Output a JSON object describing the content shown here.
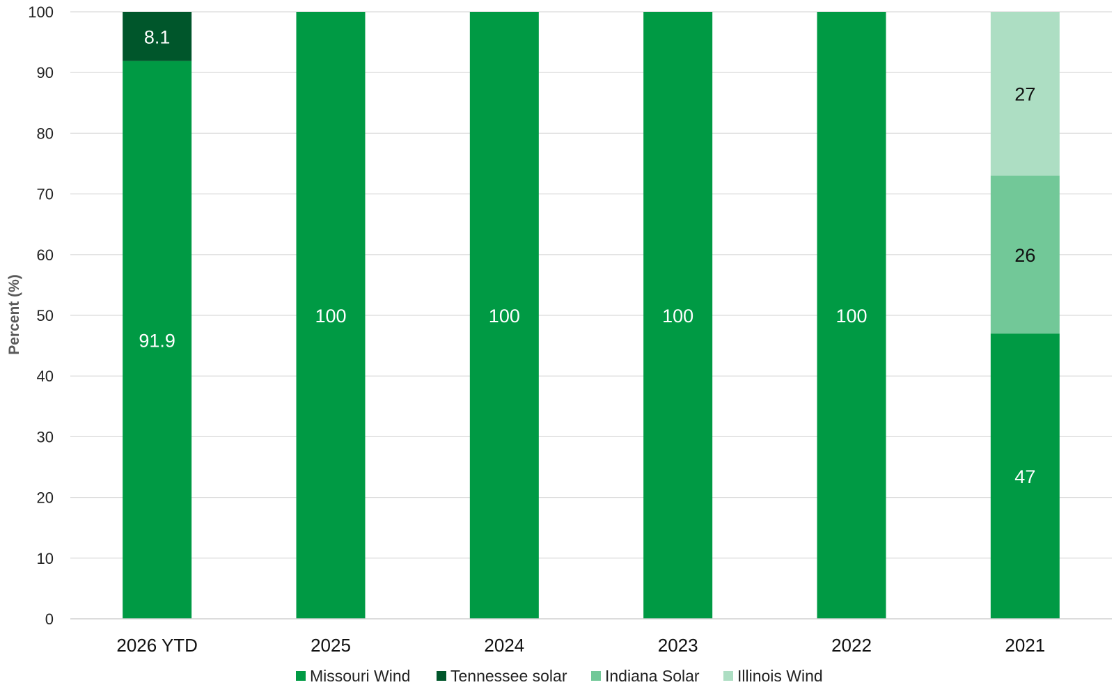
{
  "chart_data": {
    "type": "bar",
    "stacked": true,
    "categories": [
      "2026 YTD",
      "2025",
      "2024",
      "2023",
      "2022",
      "2021"
    ],
    "series": [
      {
        "name": "Missouri Wind",
        "color": "#009a44",
        "label_color": "#ffffff",
        "values": [
          91.9,
          100,
          100,
          100,
          100,
          47
        ],
        "labels": [
          "91.9",
          "100",
          "100",
          "100",
          "100",
          "47"
        ]
      },
      {
        "name": "Tennessee solar",
        "color": "#00562b",
        "label_color": "#ffffff",
        "values": [
          8.1,
          0,
          0,
          0,
          0,
          0
        ],
        "labels": [
          "8.1",
          "",
          "",
          "",
          "",
          ""
        ]
      },
      {
        "name": "Indiana Solar",
        "color": "#72c898",
        "label_color": "#111111",
        "values": [
          0,
          0,
          0,
          0,
          0,
          26
        ],
        "labels": [
          "",
          "",
          "",
          "",
          "",
          "26"
        ]
      },
      {
        "name": "Illinois Wind",
        "color": "#addec3",
        "label_color": "#111111",
        "values": [
          0,
          0,
          0,
          0,
          0,
          27
        ],
        "labels": [
          "",
          "",
          "",
          "",
          "",
          "27"
        ]
      }
    ],
    "title": "",
    "xlabel": "",
    "ylabel": "Percent (%)",
    "ylim": [
      0,
      100
    ],
    "yticks": [
      "0",
      "10",
      "20",
      "30",
      "40",
      "50",
      "60",
      "70",
      "80",
      "90",
      "100"
    ],
    "grid": true,
    "legend": "bottom"
  }
}
